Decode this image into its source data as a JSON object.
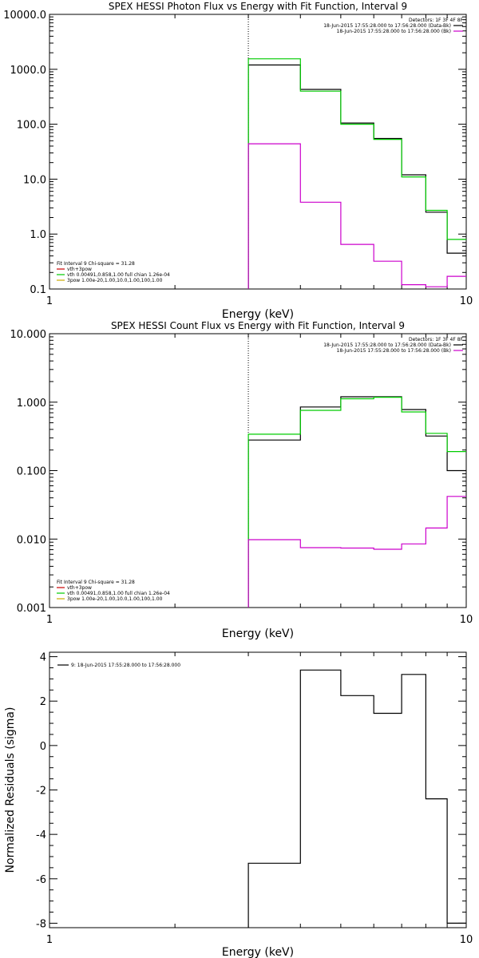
{
  "chart_data": [
    {
      "type": "line",
      "title": "SPEX HESSI Photon Flux vs Energy with Fit Function, Interval 9",
      "xlabel": "Energy (keV)",
      "ylabel": "",
      "xscale": "log",
      "yscale": "log",
      "xlim": [
        1,
        10
      ],
      "ylim": [
        0.1,
        10000
      ],
      "xticks": [
        {
          "v": 1,
          "label": "1"
        },
        {
          "v": 10,
          "label": "10"
        }
      ],
      "yticks": [
        {
          "v": 0.1,
          "label": "0.1"
        },
        {
          "v": 1,
          "label": "1.0"
        },
        {
          "v": 10,
          "label": "10.0"
        },
        {
          "v": 100,
          "label": "100.0"
        },
        {
          "v": 1000,
          "label": "1000.0"
        },
        {
          "v": 10000,
          "label": "10000.0"
        }
      ],
      "vline": 3.0,
      "legend_top": {
        "position": "top-right",
        "title": "Detectors: 1F 3F 4F 8F",
        "entries": [
          {
            "text": "18-Jun-2015 17:55:28.000 to 17:56:28.000 (Data-Bk)",
            "color": "#000000"
          },
          {
            "text": "18-Jun-2015 17:55:28.000 to 17:56:28.000 (Bk)",
            "color": "#cc00cc"
          }
        ]
      },
      "legend_bottom": {
        "position": "bottom-left",
        "title": "Fit Interval 9   Chi-square = 31.28",
        "entries": [
          {
            "text": "vth+3pow",
            "color": "#cc0000"
          },
          {
            "text": "vth 0.00491,0.858,1.00  full chian 1.26e-04",
            "color": "#00cc00"
          },
          {
            "text": "3pow 1.00e-20,1.00,10.0,1.00,100,1.00",
            "color": "#ccaa00"
          }
        ]
      },
      "series": [
        {
          "color": "#000000",
          "edges": [
            3,
            4,
            5,
            6,
            7,
            8,
            9,
            10
          ],
          "values": [
            1200,
            430,
            105,
            55,
            12,
            2.5,
            0.45
          ]
        },
        {
          "color": "#00cc00",
          "edges": [
            3,
            4,
            5,
            6,
            7,
            8,
            9,
            10
          ],
          "values": [
            1550,
            400,
            100,
            53,
            11,
            2.7,
            0.8
          ]
        },
        {
          "color": "#cc00cc",
          "edges": [
            3,
            4,
            5,
            6,
            7,
            8,
            9,
            10
          ],
          "values": [
            44,
            3.8,
            0.65,
            0.32,
            0.12,
            0.11,
            0.17
          ]
        }
      ]
    },
    {
      "type": "line",
      "title": "SPEX HESSI Count Flux vs Energy with Fit Function, Interval 9",
      "xlabel": "Energy (keV)",
      "ylabel": "",
      "xscale": "log",
      "yscale": "log",
      "xlim": [
        1,
        10
      ],
      "ylim": [
        0.001,
        10
      ],
      "xticks": [
        {
          "v": 1,
          "label": "1"
        },
        {
          "v": 10,
          "label": "10"
        }
      ],
      "yticks": [
        {
          "v": 0.001,
          "label": "0.001"
        },
        {
          "v": 0.01,
          "label": "0.010"
        },
        {
          "v": 0.1,
          "label": "0.100"
        },
        {
          "v": 1,
          "label": "1.000"
        },
        {
          "v": 10,
          "label": "10.000"
        }
      ],
      "vline": 3.0,
      "legend_top": {
        "position": "top-right",
        "title": "Detectors: 1F 3F 4F 8F",
        "entries": [
          {
            "text": "18-Jun-2015 17:55:28.000 to 17:56:28.000 (Data-Bk)",
            "color": "#000000"
          },
          {
            "text": "18-Jun-2015 17:55:28.000 to 17:56:28.000 (Bk)",
            "color": "#cc00cc"
          }
        ]
      },
      "legend_bottom": {
        "position": "bottom-left",
        "title": "Fit Interval 9   Chi-square = 31.28",
        "entries": [
          {
            "text": "vth+3pow",
            "color": "#cc0000"
          },
          {
            "text": "vth 0.00491,0.858,1.00  full chian 1.26e-04",
            "color": "#00cc00"
          },
          {
            "text": "3pow 1.00e-20,1.00,10.0,1.00,100,1.00",
            "color": "#ccaa00"
          }
        ]
      },
      "series": [
        {
          "color": "#000000",
          "edges": [
            3,
            4,
            5,
            6,
            7,
            8,
            9,
            10
          ],
          "values": [
            0.28,
            0.85,
            1.2,
            1.2,
            0.78,
            0.32,
            0.1
          ]
        },
        {
          "color": "#00cc00",
          "edges": [
            3,
            4,
            5,
            6,
            7,
            8,
            9,
            10
          ],
          "values": [
            0.34,
            0.76,
            1.12,
            1.18,
            0.72,
            0.35,
            0.19
          ]
        },
        {
          "color": "#cc00cc",
          "edges": [
            3,
            4,
            5,
            6,
            7,
            8,
            9,
            10
          ],
          "values": [
            0.0098,
            0.0075,
            0.0074,
            0.0071,
            0.0085,
            0.0145,
            0.042
          ]
        }
      ]
    },
    {
      "type": "line",
      "title": "",
      "xlabel": "Energy (keV)",
      "ylabel": "Normalized Residuals (sigma)",
      "xscale": "log",
      "yscale": "linear",
      "xlim": [
        1,
        10
      ],
      "ylim": [
        -8.2,
        4.2
      ],
      "xticks": [
        {
          "v": 1,
          "label": "1"
        },
        {
          "v": 10,
          "label": "10"
        }
      ],
      "yticks": [
        {
          "v": -8,
          "label": "-8"
        },
        {
          "v": -6,
          "label": "-6"
        },
        {
          "v": -4,
          "label": "-4"
        },
        {
          "v": -2,
          "label": "-2"
        },
        {
          "v": 0,
          "label": "0"
        },
        {
          "v": 2,
          "label": "2"
        },
        {
          "v": 4,
          "label": "4"
        }
      ],
      "legend_top": {
        "position": "top-left",
        "title": "",
        "entries": [
          {
            "text": "9: 18-Jun-2015 17:55:28.000 to 17:56:28.000",
            "color": "#000000"
          }
        ]
      },
      "series": [
        {
          "color": "#000000",
          "edges": [
            3,
            4,
            5,
            6,
            7,
            8,
            9,
            10
          ],
          "values": [
            -5.3,
            3.4,
            2.25,
            1.45,
            3.2,
            -2.4,
            -8.0
          ]
        }
      ]
    }
  ]
}
